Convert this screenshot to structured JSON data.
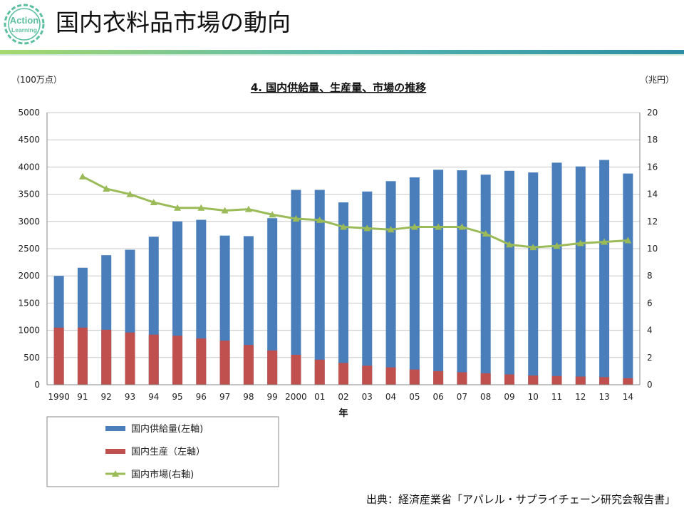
{
  "slide": {
    "title": "国内衣料品市場の動向",
    "logo_text_line1": "Action",
    "logo_text_line2": "Learning",
    "source_note": "出典：経済産業省「アパレル・サプライチェーン研究会報告書」"
  },
  "colors": {
    "supply_bar": "#4a7ebb",
    "production_bar": "#c0504d",
    "market_line": "#9bbb59",
    "logo_green": "#5cbf9e",
    "rule_teal": "#2b8ca3",
    "rule_green": "#a6d86d"
  },
  "chart_data": {
    "type": "bar",
    "title": "4. 国内供給量、生産量、市場の推移",
    "left_unit": "（100万点）",
    "right_unit": "（兆円）",
    "xlabel": "年",
    "categories": [
      "1990",
      "91",
      "92",
      "93",
      "94",
      "95",
      "96",
      "97",
      "98",
      "99",
      "2000",
      "01",
      "02",
      "03",
      "04",
      "05",
      "06",
      "07",
      "08",
      "09",
      "10",
      "11",
      "12",
      "13",
      "14"
    ],
    "ylim": [
      0,
      5000
    ],
    "yticks": [
      0,
      500,
      1000,
      1500,
      2000,
      2500,
      3000,
      3500,
      4000,
      4500,
      5000
    ],
    "y2lim": [
      0,
      20
    ],
    "y2ticks": [
      0,
      2,
      4,
      6,
      8,
      10,
      12,
      14,
      16,
      18,
      20
    ],
    "series": [
      {
        "name": "国内供給量(左軸)",
        "kind": "bar",
        "axis": "left",
        "values": [
          2000,
          2150,
          2380,
          2480,
          2720,
          3000,
          3030,
          2740,
          2730,
          3060,
          3580,
          3580,
          3350,
          3550,
          3740,
          3810,
          3950,
          3940,
          3860,
          3930,
          3900,
          4080,
          4010,
          4130,
          3880
        ]
      },
      {
        "name": "国内生産（左軸）",
        "kind": "bar",
        "axis": "left",
        "values": [
          1050,
          1050,
          1010,
          960,
          920,
          900,
          850,
          810,
          730,
          630,
          550,
          460,
          400,
          350,
          320,
          280,
          250,
          230,
          210,
          190,
          170,
          160,
          150,
          140,
          120
        ]
      },
      {
        "name": "国内市場(右軸)",
        "kind": "line",
        "axis": "right",
        "values": [
          null,
          15.3,
          14.4,
          14.0,
          13.4,
          13.0,
          13.0,
          12.8,
          12.9,
          12.5,
          12.2,
          12.1,
          11.6,
          11.5,
          11.4,
          11.6,
          11.6,
          11.6,
          11.1,
          10.3,
          10.1,
          10.2,
          10.4,
          10.5,
          10.6
        ]
      }
    ],
    "legend_position": "bottom-left"
  }
}
